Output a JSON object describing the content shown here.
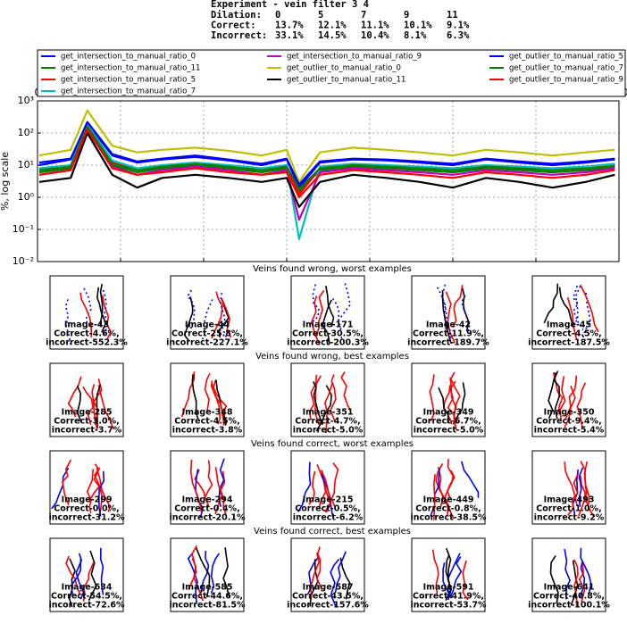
{
  "header": {
    "title": "Experiment - vein filter 3 4",
    "rows": [
      [
        "Dilation:",
        "0",
        "5",
        "7",
        "9",
        "11"
      ],
      [
        "Correct:",
        "13.7%",
        "12.1%",
        "11.1%",
        "10.1%",
        "9.1%"
      ],
      [
        "Incorrect:",
        "33.1%",
        "14.5%",
        "10.4%",
        "8.1%",
        "6.3%"
      ]
    ]
  },
  "chart_data": {
    "type": "line",
    "y_label": "%, log scale",
    "log_y": true,
    "grid": true,
    "legend": "top",
    "xlim": [
      0,
      700
    ],
    "xticks": [
      0,
      100,
      200,
      300,
      400,
      500,
      600,
      700
    ],
    "ylim": [
      0.01,
      1000
    ],
    "yticks": [
      {
        "value": 0.01,
        "label": "10⁻²"
      },
      {
        "value": 0.1,
        "label": "10⁻¹"
      },
      {
        "value": 1,
        "label": "10⁰"
      },
      {
        "value": 10,
        "label": "10¹"
      },
      {
        "value": 100,
        "label": "10²"
      },
      {
        "value": 1000,
        "label": "10³"
      }
    ],
    "x": [
      2,
      40,
      60,
      90,
      120,
      150,
      190,
      230,
      270,
      300,
      315,
      340,
      380,
      420,
      460,
      500,
      540,
      580,
      620,
      660,
      695
    ],
    "series": [
      {
        "name": "get_intersection_to_manual_ratio_0",
        "color": "#0000ff",
        "values": [
          10,
          15,
          200,
          20,
          12,
          15,
          18,
          14,
          10,
          15,
          2,
          12,
          15,
          14,
          12,
          10,
          15,
          12,
          10,
          12,
          15
        ]
      },
      {
        "name": "get_intersection_to_manual_ratio_11",
        "color": "#008000",
        "values": [
          6,
          8,
          150,
          10,
          6,
          8,
          10,
          8,
          6,
          8,
          1.5,
          7,
          9,
          8,
          7,
          6,
          8,
          7,
          6,
          7,
          8
        ]
      },
      {
        "name": "get_intersection_to_manual_ratio_5",
        "color": "#ff0000",
        "values": [
          7,
          9,
          150,
          12,
          7,
          9,
          11,
          9,
          7,
          9,
          1.2,
          8,
          10,
          9,
          8,
          7,
          9,
          8,
          7,
          8,
          10
        ]
      },
      {
        "name": "get_intersection_to_manual_ratio_7",
        "color": "#00bfbf",
        "values": [
          8,
          10,
          180,
          14,
          8,
          10,
          12,
          10,
          8,
          10,
          0.05,
          9,
          11,
          10,
          9,
          8,
          10,
          9,
          8,
          9,
          11
        ]
      },
      {
        "name": "get_intersection_to_manual_ratio_9",
        "color": "#bf00bf",
        "values": [
          5,
          7,
          120,
          9,
          5,
          7,
          9,
          7,
          5,
          7,
          0.2,
          6,
          8,
          7,
          6,
          5,
          7,
          6,
          5,
          6,
          8
        ]
      },
      {
        "name": "get_outlier_to_manual_ratio_0",
        "color": "#bfbf00",
        "values": [
          20,
          30,
          500,
          40,
          25,
          30,
          35,
          28,
          20,
          30,
          3,
          25,
          35,
          30,
          25,
          20,
          30,
          25,
          20,
          25,
          30
        ]
      },
      {
        "name": "get_outlier_to_manual_ratio_11",
        "color": "#000000",
        "values": [
          3,
          4,
          100,
          5,
          2,
          4,
          5,
          4,
          3,
          4,
          0.5,
          3,
          5,
          4,
          3,
          2,
          4,
          3,
          2,
          3,
          5
        ]
      },
      {
        "name": "get_outlier_to_manual_ratio_5",
        "color": "#0000ff",
        "values": [
          12,
          16,
          220,
          22,
          13,
          16,
          20,
          15,
          11,
          16,
          2.5,
          13,
          16,
          15,
          13,
          11,
          16,
          13,
          11,
          13,
          16
        ]
      },
      {
        "name": "get_outlier_to_manual_ratio_7",
        "color": "#008000",
        "values": [
          7,
          9,
          160,
          11,
          7,
          9,
          11,
          9,
          7,
          9,
          1.8,
          8,
          10,
          9,
          8,
          7,
          9,
          8,
          7,
          8,
          9
        ]
      },
      {
        "name": "get_outlier_to_manual_ratio_9",
        "color": "#ff0000",
        "values": [
          5,
          7,
          130,
          8,
          5,
          6,
          8,
          6,
          5,
          6,
          1,
          5,
          7,
          6,
          5,
          4,
          6,
          5,
          4,
          5,
          7
        ]
      }
    ]
  },
  "sections": [
    {
      "title": "Veins found wrong, worst examples",
      "panels": [
        {
          "image": "Image-43",
          "correct": "Correct-4.6%,",
          "incorrect": "incorrect-552.3%"
        },
        {
          "image": "Image-44",
          "correct": "Correct-25.8%,",
          "incorrect": "incorrect-227.1%"
        },
        {
          "image": "Image-171",
          "correct": "Correct-30.5%,",
          "incorrect": "incorrect-200.3%"
        },
        {
          "image": "Image-42",
          "correct": "Correct-11.9%,",
          "incorrect": "incorrect-189.7%"
        },
        {
          "image": "Image-45",
          "correct": "Correct-4.5%,",
          "incorrect": "incorrect-187.5%"
        }
      ]
    },
    {
      "title": "Veins found wrong, best examples",
      "panels": [
        {
          "image": "Image-285",
          "correct": "Correct-3.0%,",
          "incorrect": "incorrect-3.7%"
        },
        {
          "image": "Image-348",
          "correct": "Correct-4.5%,",
          "incorrect": "incorrect-3.8%"
        },
        {
          "image": "Image-351",
          "correct": "Correct-4.7%,",
          "incorrect": "incorrect-5.0%"
        },
        {
          "image": "Image-349",
          "correct": "Correct-6.7%,",
          "incorrect": "incorrect-5.0%"
        },
        {
          "image": "Image-350",
          "correct": "Correct-9.4%,",
          "incorrect": "incorrect-5.4%"
        }
      ]
    },
    {
      "title": "Veins found correct, worst examples",
      "panels": [
        {
          "image": "Image-299",
          "correct": "Correct-0.0%,",
          "incorrect": "incorrect-31.2%"
        },
        {
          "image": "Image-294",
          "correct": "Correct-0.4%,",
          "incorrect": "incorrect-20.1%"
        },
        {
          "image": "Image-215",
          "correct": "Correct-0.5%,",
          "incorrect": "incorrect-6.2%"
        },
        {
          "image": "Image-449",
          "correct": "Correct-0.8%,",
          "incorrect": "incorrect-38.5%"
        },
        {
          "image": "Image-493",
          "correct": "Correct-1.0%,",
          "incorrect": "incorrect-9.2%"
        }
      ]
    },
    {
      "title": "Veins found correct, best examples",
      "panels": [
        {
          "image": "Image-634",
          "correct": "Correct-54.5%,",
          "incorrect": "incorrect-72.6%"
        },
        {
          "image": "Image-585",
          "correct": "Correct-44.6%,",
          "incorrect": "incorrect-81.5%"
        },
        {
          "image": "Image-587",
          "correct": "Correct-43.5%,",
          "incorrect": "incorrect-157.6%"
        },
        {
          "image": "Image-591",
          "correct": "Correct-41.9%,",
          "incorrect": "incorrect-53.7%"
        },
        {
          "image": "Image-641",
          "correct": "Correct-40.8%,",
          "incorrect": "incorrect-100.1%"
        }
      ]
    }
  ]
}
